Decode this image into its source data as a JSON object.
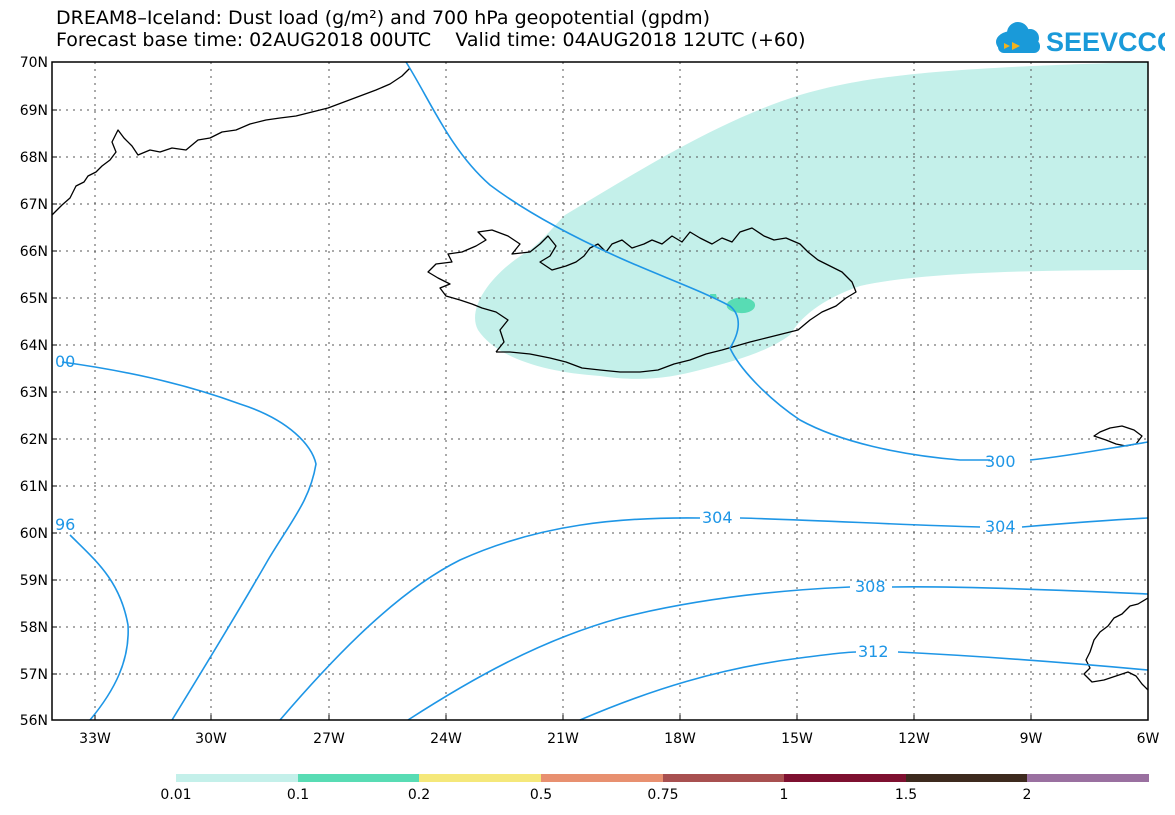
{
  "header": {
    "title_line1": "DREAM8–Iceland: Dust load (g/m²) and 700 hPa geopotential (gpdm)",
    "title_line2": "Forecast base time: 02AUG2018 00UTC    Valid time: 04AUG2018 12UTC (+60)"
  },
  "logo": {
    "text": "SEEVCCC",
    "icon": "cloud-arrow-icon",
    "color": "#1a9ad9"
  },
  "map": {
    "lat_labels": [
      "70N",
      "69N",
      "68N",
      "67N",
      "66N",
      "65N",
      "64N",
      "63N",
      "62N",
      "61N",
      "60N",
      "59N",
      "58N",
      "57N",
      "56N"
    ],
    "lon_labels": [
      "33W",
      "30W",
      "27W",
      "24W",
      "21W",
      "18W",
      "15W",
      "12W",
      "9W",
      "6W"
    ],
    "contour_labels": [
      "00",
      "96",
      "300",
      "304",
      "304",
      "308",
      "312"
    ],
    "contour_color": "#1e96e6",
    "coastline_color": "#000000",
    "dust_light_color": "#c4f0ea",
    "dust_mid_color": "#58dcb4"
  },
  "colorbar": {
    "labels": [
      "0.01",
      "0.1",
      "0.2",
      "0.5",
      "0.75",
      "1",
      "1.5",
      "2"
    ],
    "colors": [
      "#c4f0ea",
      "#58dcb4",
      "#f5e87a",
      "#e89070",
      "#a85050",
      "#7e1030",
      "#3d2a1e",
      "#9a70a0"
    ]
  }
}
